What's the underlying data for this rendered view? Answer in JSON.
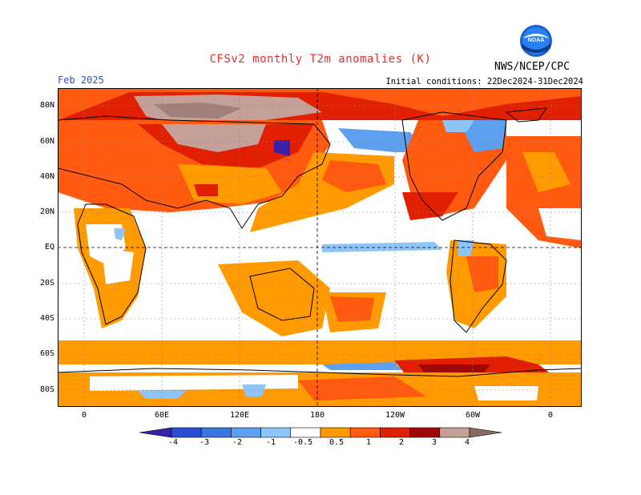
{
  "header": {
    "title": "CFSv2 monthly T2m anomalies (K)",
    "month": "Feb 2025",
    "initial_conditions": "Initial conditions: 22Dec2024-31Dec2024",
    "agency": "NWS/NCEP/CPC",
    "logo_text": "NOAA"
  },
  "map": {
    "lat_labels": [
      "80N",
      "60N",
      "40N",
      "20N",
      "EQ",
      "20S",
      "40S",
      "60S",
      "80S"
    ],
    "lon_labels": [
      "0",
      "60E",
      "120E",
      "180",
      "120W",
      "60W",
      "0"
    ]
  },
  "colorbar": {
    "labels": [
      "-4",
      "-3",
      "-2",
      "-1",
      "-0.5",
      "0.5",
      "1",
      "2",
      "3",
      "4"
    ],
    "colors": [
      "#3a1fa8",
      "#2a4ed0",
      "#3a78e0",
      "#5ea0f0",
      "#8ec4f8",
      "#ffffff",
      "#ff9a00",
      "#ff5a10",
      "#e02000",
      "#a00808",
      "#c4a098",
      "#8a6a60"
    ]
  }
}
